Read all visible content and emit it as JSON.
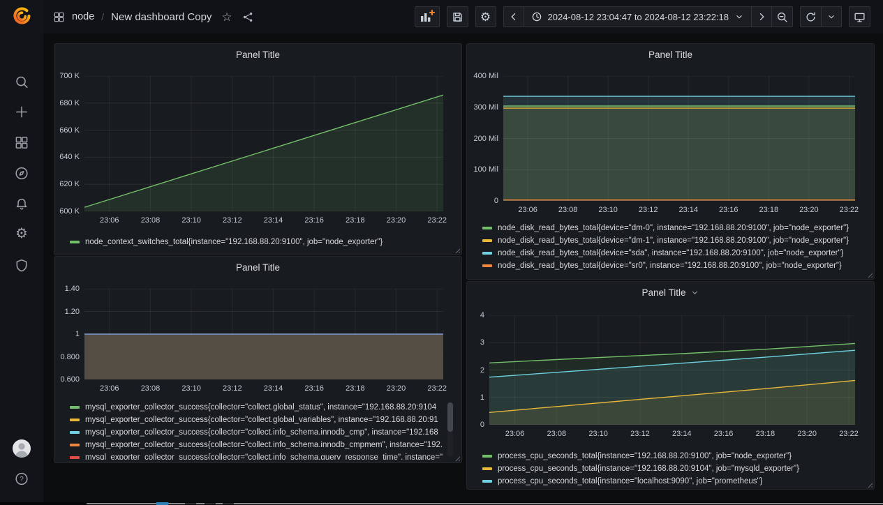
{
  "app": {
    "name": "Grafana",
    "brand_color": "#F05A28",
    "accent_orange": "#FF8833",
    "page_bg": "#111217",
    "panel_bg": "#181b1f"
  },
  "header": {
    "breadcrumb": {
      "section": "node",
      "separator": "/",
      "title": "New dashboard Copy"
    },
    "time_range_label": "2024-08-12 23:04:47 to 2024-08-12 23:22:18"
  },
  "icons": {
    "search-icon": "magnifier",
    "plus-icon": "plus",
    "dashboards-icon": "four-squares",
    "explore-icon": "compass",
    "alerting-icon": "bell",
    "configuration-icon": "gear",
    "server-admin-icon": "shield",
    "help-icon": "question-circle",
    "user-avatar": "person-circle",
    "apps-icon": "four-squares",
    "star-icon": "star-outline",
    "share-icon": "share-nodes",
    "panel-add-icon": "bar-chart-plus",
    "save-icon": "floppy-disk",
    "settings-icon": "gear",
    "chevron-left-icon": "angle-left",
    "chevron-right-icon": "angle-right",
    "chevron-down-icon": "angle-down",
    "clock-icon": "clock",
    "zoom-out-icon": "magnifier-minus",
    "refresh-icon": "sync-arrows",
    "tv-icon": "monitor",
    "grafana-logo": "flame-spiral"
  },
  "panels": [
    {
      "title": "Panel Title",
      "chart_data": {
        "type": "line",
        "xlim": [
          4.78,
          22.3
        ],
        "xticks": [
          {
            "v": 6,
            "label": "23:06"
          },
          {
            "v": 8,
            "label": "23:08"
          },
          {
            "v": 10,
            "label": "23:10"
          },
          {
            "v": 12,
            "label": "23:12"
          },
          {
            "v": 14,
            "label": "23:14"
          },
          {
            "v": 16,
            "label": "23:16"
          },
          {
            "v": 18,
            "label": "23:18"
          },
          {
            "v": 20,
            "label": "23:20"
          },
          {
            "v": 22,
            "label": "23:22"
          }
        ],
        "ylim": [
          600000,
          700000
        ],
        "yticks": [
          {
            "v": 600000,
            "label": "600 K"
          },
          {
            "v": 620000,
            "label": "620 K"
          },
          {
            "v": 640000,
            "label": "640 K"
          },
          {
            "v": 660000,
            "label": "660 K"
          },
          {
            "v": 680000,
            "label": "680 K"
          },
          {
            "v": 700000,
            "label": "700 K"
          }
        ],
        "series": [
          {
            "name": "node_context_switches_total{instance=\"192.168.88.20:9100\", job=\"node_exporter\"}",
            "color": "#73BF69",
            "fill_opacity": 0.13,
            "points": [
              [
                4.78,
                603000
              ],
              [
                22.3,
                686000
              ]
            ]
          }
        ]
      },
      "legend": [
        {
          "color": "#73BF69",
          "label": "node_context_switches_total{instance=\"192.168.88.20:9100\", job=\"node_exporter\"}"
        }
      ]
    },
    {
      "title": "Panel Title",
      "chart_data": {
        "type": "line",
        "xlim": [
          4.78,
          22.3
        ],
        "xticks": [
          {
            "v": 6,
            "label": "23:06"
          },
          {
            "v": 8,
            "label": "23:08"
          },
          {
            "v": 10,
            "label": "23:10"
          },
          {
            "v": 12,
            "label": "23:12"
          },
          {
            "v": 14,
            "label": "23:14"
          },
          {
            "v": 16,
            "label": "23:16"
          },
          {
            "v": 18,
            "label": "23:18"
          },
          {
            "v": 20,
            "label": "23:20"
          },
          {
            "v": 22,
            "label": "23:22"
          }
        ],
        "ylim": [
          0,
          400000000
        ],
        "yticks": [
          {
            "v": 0,
            "label": "0"
          },
          {
            "v": 100000000,
            "label": "100 Mil"
          },
          {
            "v": 200000000,
            "label": "200 Mil"
          },
          {
            "v": 300000000,
            "label": "300 Mil"
          },
          {
            "v": 400000000,
            "label": "400 Mil"
          }
        ],
        "series": [
          {
            "name": "node_disk_read_bytes_total{device=\"sda\", instance=\"192.168.88.20:9100\", job=\"node_exporter\"}",
            "color": "#6ED0E0",
            "fill_opacity": 0.14,
            "points": [
              [
                4.78,
                335000000
              ],
              [
                22.3,
                335000000
              ]
            ]
          },
          {
            "name": "node_disk_read_bytes_total{device=\"dm-0\", instance=\"192.168.88.20:9100\", job=\"node_exporter\"}",
            "color": "#73BF69",
            "fill_opacity": 0.1,
            "points": [
              [
                4.78,
                304000000
              ],
              [
                22.3,
                304000000
              ]
            ]
          },
          {
            "name": "node_disk_read_bytes_total{device=\"dm-1\", instance=\"192.168.88.20:9100\", job=\"node_exporter\"}",
            "color": "#EAB839",
            "fill_opacity": 0.07,
            "points": [
              [
                4.78,
                297000000
              ],
              [
                22.3,
                297000000
              ]
            ]
          },
          {
            "name": "node_disk_read_bytes_total{device=\"sr0\", instance=\"192.168.88.20:9100\", job=\"node_exporter\"}",
            "color": "#EF843C",
            "fill_opacity": 0.06,
            "points": [
              [
                4.78,
                3000000
              ],
              [
                22.3,
                3000000
              ]
            ]
          }
        ]
      },
      "legend": [
        {
          "color": "#73BF69",
          "label": "node_disk_read_bytes_total{device=\"dm-0\", instance=\"192.168.88.20:9100\", job=\"node_exporter\"}"
        },
        {
          "color": "#EAB839",
          "label": "node_disk_read_bytes_total{device=\"dm-1\", instance=\"192.168.88.20:9100\", job=\"node_exporter\"}"
        },
        {
          "color": "#6ED0E0",
          "label": "node_disk_read_bytes_total{device=\"sda\", instance=\"192.168.88.20:9100\", job=\"node_exporter\"}"
        },
        {
          "color": "#EF843C",
          "label": "node_disk_read_bytes_total{device=\"sr0\", instance=\"192.168.88.20:9100\", job=\"node_exporter\"}"
        }
      ]
    },
    {
      "title": "Panel Title",
      "legend_scrollbar": true,
      "chart_data": {
        "type": "line",
        "xlim": [
          4.78,
          22.3
        ],
        "xticks": [
          {
            "v": 6,
            "label": "23:06"
          },
          {
            "v": 8,
            "label": "23:08"
          },
          {
            "v": 10,
            "label": "23:10"
          },
          {
            "v": 12,
            "label": "23:12"
          },
          {
            "v": 14,
            "label": "23:14"
          },
          {
            "v": 16,
            "label": "23:16"
          },
          {
            "v": 18,
            "label": "23:18"
          },
          {
            "v": 20,
            "label": "23:20"
          },
          {
            "v": 22,
            "label": "23:22"
          }
        ],
        "ylim": [
          0.6,
          1.4
        ],
        "yticks": [
          {
            "v": 0.6,
            "label": "0.600"
          },
          {
            "v": 0.8,
            "label": "0.800"
          },
          {
            "v": 1,
            "label": "1"
          },
          {
            "v": 1.2,
            "label": "1.20"
          },
          {
            "v": 1.4,
            "label": "1.40"
          }
        ],
        "series": [
          {
            "name": "mysql_exporter_collector_success (overlapping series, all = 1)",
            "color": "#7e9bd0",
            "fill_color": "#5a5147",
            "fill_opacity": 0.92,
            "points": [
              [
                4.78,
                1
              ],
              [
                22.3,
                1
              ]
            ]
          }
        ]
      },
      "legend": [
        {
          "color": "#73BF69",
          "label": "mysql_exporter_collector_success{collector=\"collect.global_status\", instance=\"192.168.88.20:9104"
        },
        {
          "color": "#EAB839",
          "label": "mysql_exporter_collector_success{collector=\"collect.global_variables\", instance=\"192.168.88.20:91"
        },
        {
          "color": "#6ED0E0",
          "label": "mysql_exporter_collector_success{collector=\"collect.info_schema.innodb_cmp\", instance=\"192.168"
        },
        {
          "color": "#EF843C",
          "label": "mysql_exporter_collector_success{collector=\"collect.info_schema.innodb_cmpmem\", instance=\"192."
        },
        {
          "color": "#E24D42",
          "label": "mysql_exporter_collector_success{collector=\"collect.info_schema.query_response_time\", instance=\""
        }
      ]
    },
    {
      "title": "Panel Title",
      "menu_caret": true,
      "chart_data": {
        "type": "line",
        "xlim": [
          4.78,
          22.3
        ],
        "xticks": [
          {
            "v": 6,
            "label": "23:06"
          },
          {
            "v": 8,
            "label": "23:08"
          },
          {
            "v": 10,
            "label": "23:10"
          },
          {
            "v": 12,
            "label": "23:12"
          },
          {
            "v": 14,
            "label": "23:14"
          },
          {
            "v": 16,
            "label": "23:16"
          },
          {
            "v": 18,
            "label": "23:18"
          },
          {
            "v": 20,
            "label": "23:20"
          },
          {
            "v": 22,
            "label": "23:22"
          }
        ],
        "ylim": [
          0,
          4
        ],
        "yticks": [
          {
            "v": 0,
            "label": "0"
          },
          {
            "v": 1,
            "label": "1"
          },
          {
            "v": 2,
            "label": "2"
          },
          {
            "v": 3,
            "label": "3"
          },
          {
            "v": 4,
            "label": "4"
          }
        ],
        "series": [
          {
            "name": "process_cpu_seconds_total{instance=\"192.168.88.20:9100\", job=\"node_exporter\"}",
            "color": "#73BF69",
            "fill_opacity": 0.1,
            "points": [
              [
                4.78,
                2.26
              ],
              [
                9,
                2.42
              ],
              [
                14,
                2.6
              ],
              [
                18,
                2.76
              ],
              [
                22.3,
                2.97
              ]
            ]
          },
          {
            "name": "process_cpu_seconds_total{instance=\"localhost:9090\", job=\"prometheus\"}",
            "color": "#6ED0E0",
            "fill_opacity": 0.1,
            "points": [
              [
                4.78,
                1.74
              ],
              [
                9,
                1.97
              ],
              [
                14,
                2.25
              ],
              [
                18,
                2.47
              ],
              [
                22.3,
                2.72
              ]
            ]
          },
          {
            "name": "process_cpu_seconds_total{instance=\"192.168.88.20:9104\", job=\"mysqld_exporter\"}",
            "color": "#EAB839",
            "fill_opacity": 0.1,
            "points": [
              [
                4.78,
                0.45
              ],
              [
                9,
                0.73
              ],
              [
                14,
                1.06
              ],
              [
                18,
                1.32
              ],
              [
                22.3,
                1.62
              ]
            ]
          }
        ]
      },
      "legend": [
        {
          "color": "#73BF69",
          "label": "process_cpu_seconds_total{instance=\"192.168.88.20:9100\", job=\"node_exporter\"}"
        },
        {
          "color": "#EAB839",
          "label": "process_cpu_seconds_total{instance=\"192.168.88.20:9104\", job=\"mysqld_exporter\"}"
        },
        {
          "color": "#6ED0E0",
          "label": "process_cpu_seconds_total{instance=\"localhost:9090\", job=\"prometheus\"}"
        }
      ]
    }
  ]
}
